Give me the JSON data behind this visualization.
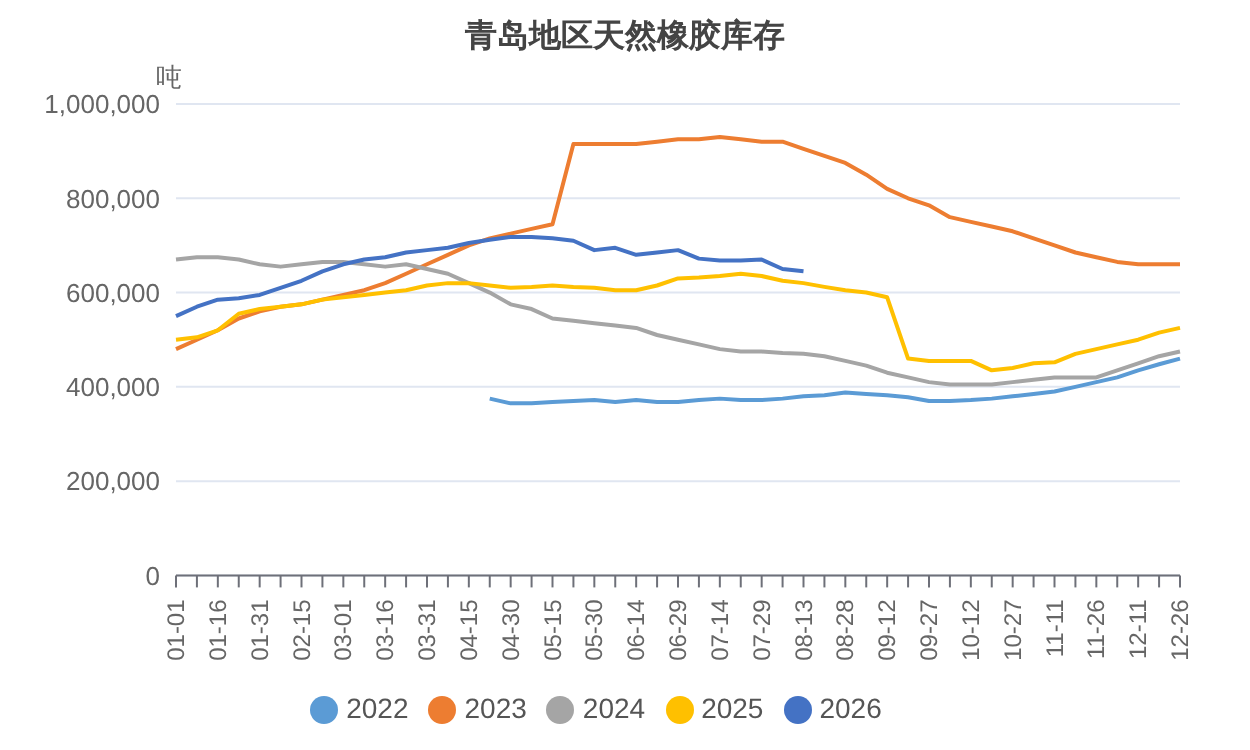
{
  "chart_data": {
    "type": "line",
    "title": "青岛地区天然橡胶库存",
    "ylabel": "吨",
    "categories": [
      "01-01",
      null,
      "01-16",
      null,
      "01-31",
      null,
      "02-15",
      null,
      "03-01",
      null,
      "03-16",
      null,
      "03-31",
      null,
      "04-15",
      null,
      "04-30",
      null,
      "05-15",
      null,
      "05-30",
      null,
      "06-14",
      null,
      "06-29",
      null,
      "07-14",
      null,
      "07-29",
      null,
      "08-13",
      null,
      "08-28",
      null,
      "09-12",
      null,
      "09-27",
      null,
      "10-12",
      null,
      "10-27",
      null,
      "11-11",
      null,
      "11-26",
      null,
      "12-11",
      null,
      "12-26"
    ],
    "series": [
      {
        "name": "2022",
        "color": "#5b9bd5",
        "values": [
          null,
          null,
          null,
          null,
          null,
          null,
          null,
          null,
          null,
          null,
          null,
          null,
          null,
          null,
          null,
          375000,
          365000,
          365000,
          368000,
          370000,
          372000,
          368000,
          372000,
          368000,
          368000,
          372000,
          375000,
          372000,
          372000,
          375000,
          380000,
          382000,
          388000,
          385000,
          382000,
          378000,
          370000,
          370000,
          372000,
          375000,
          380000,
          385000,
          390000,
          400000,
          410000,
          420000,
          435000,
          448000,
          460000
        ]
      },
      {
        "name": "2023",
        "color": "#ed7d31",
        "values": [
          480000,
          500000,
          520000,
          545000,
          560000,
          570000,
          575000,
          585000,
          595000,
          605000,
          620000,
          640000,
          660000,
          680000,
          700000,
          715000,
          725000,
          735000,
          745000,
          915000,
          915000,
          915000,
          915000,
          920000,
          925000,
          925000,
          930000,
          925000,
          920000,
          920000,
          905000,
          890000,
          875000,
          850000,
          820000,
          800000,
          785000,
          760000,
          750000,
          740000,
          730000,
          715000,
          700000,
          685000,
          675000,
          665000,
          660000,
          660000,
          660000
        ]
      },
      {
        "name": "2024",
        "color": "#a5a5a5",
        "values": [
          670000,
          675000,
          675000,
          670000,
          660000,
          655000,
          660000,
          665000,
          665000,
          660000,
          655000,
          660000,
          650000,
          640000,
          620000,
          600000,
          575000,
          565000,
          545000,
          540000,
          535000,
          530000,
          525000,
          510000,
          500000,
          490000,
          480000,
          475000,
          475000,
          472000,
          470000,
          465000,
          455000,
          445000,
          430000,
          420000,
          410000,
          405000,
          405000,
          405000,
          410000,
          415000,
          420000,
          420000,
          420000,
          435000,
          450000,
          465000,
          475000
        ]
      },
      {
        "name": "2025",
        "color": "#ffc000",
        "values": [
          500000,
          505000,
          520000,
          555000,
          565000,
          570000,
          575000,
          585000,
          590000,
          595000,
          600000,
          605000,
          615000,
          620000,
          620000,
          615000,
          610000,
          612000,
          615000,
          612000,
          610000,
          605000,
          605000,
          615000,
          630000,
          632000,
          635000,
          640000,
          635000,
          625000,
          620000,
          612000,
          605000,
          600000,
          590000,
          460000,
          455000,
          455000,
          455000,
          435000,
          440000,
          450000,
          452000,
          470000,
          480000,
          490000,
          500000,
          515000,
          525000
        ]
      },
      {
        "name": "2026",
        "color": "#4472c4",
        "values": [
          550000,
          570000,
          585000,
          588000,
          595000,
          610000,
          625000,
          645000,
          660000,
          670000,
          675000,
          685000,
          690000,
          695000,
          705000,
          712000,
          718000,
          718000,
          715000,
          710000,
          690000,
          695000,
          680000,
          685000,
          690000,
          672000,
          668000,
          668000,
          670000,
          650000,
          645000,
          null,
          null,
          null,
          null,
          null,
          null,
          null,
          null,
          null,
          null,
          null,
          null,
          null,
          null,
          null,
          null,
          null,
          null
        ]
      }
    ],
    "ylim": [
      0,
      1000000
    ],
    "yticks": [
      0,
      {
        "value": 200000,
        "label": "200,000"
      },
      {
        "value": 400000,
        "label": "400,000"
      },
      {
        "value": 600000,
        "label": "600,000"
      },
      {
        "value": 800000,
        "label": "800,000"
      },
      {
        "value": 1000000,
        "label": "1,000,000"
      }
    ],
    "grid": "y",
    "legend": "bottom",
    "marker": "none",
    "line_style": "solid"
  }
}
